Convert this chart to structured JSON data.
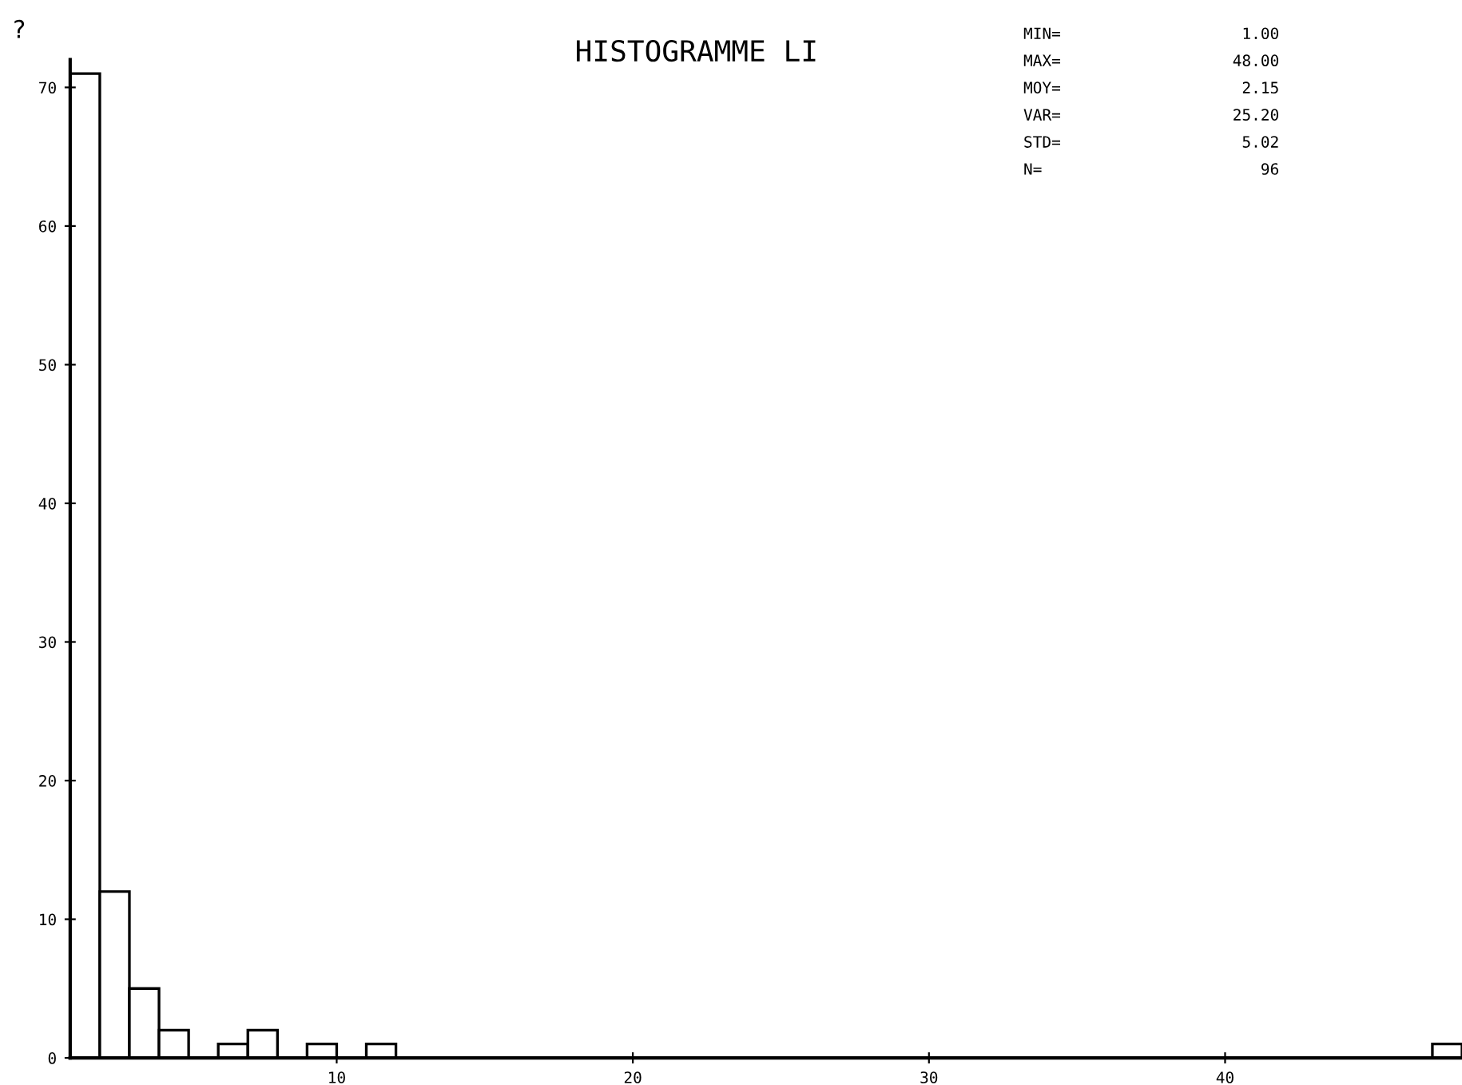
{
  "chart_data": {
    "type": "histogram",
    "title": "HISTOGRAMME LI",
    "ylabel": "?",
    "bins": [
      1,
      2,
      3,
      4,
      5,
      6,
      7,
      8,
      9,
      10,
      11,
      12,
      13,
      14,
      15,
      16,
      17,
      18,
      19,
      20,
      21,
      22,
      23,
      24,
      25,
      26,
      27,
      28,
      29,
      30,
      31,
      32,
      33,
      34,
      35,
      36,
      37,
      38,
      39,
      40,
      41,
      42,
      43,
      44,
      45,
      46,
      47,
      48
    ],
    "values": [
      71,
      12,
      5,
      2,
      0,
      1,
      2,
      0,
      1,
      0,
      1,
      0,
      0,
      0,
      0,
      0,
      0,
      0,
      0,
      0,
      0,
      0,
      0,
      0,
      0,
      0,
      0,
      0,
      0,
      0,
      0,
      0,
      0,
      0,
      0,
      0,
      0,
      0,
      0,
      0,
      0,
      0,
      0,
      0,
      0,
      0,
      1
    ],
    "color": "#ffffff",
    "xlim": [
      1,
      48
    ],
    "xticks": [
      10,
      20,
      30,
      40
    ],
    "ylim": [
      0,
      72
    ],
    "yticks": [
      0,
      10,
      20,
      30,
      40,
      50,
      60,
      70
    ],
    "grid": false,
    "legend": false,
    "annotations": [
      "MIN=",
      "1.00",
      "MAX=",
      "48.00",
      "MOY=",
      "2.15",
      "VAR=",
      "25.20",
      "STD=",
      "5.02",
      "N=",
      "96"
    ]
  }
}
